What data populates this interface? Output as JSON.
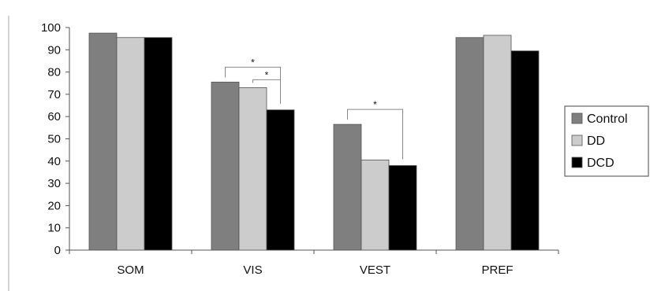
{
  "chart_data": {
    "type": "bar",
    "categories": [
      "SOM",
      "VIS",
      "VEST",
      "PREF"
    ],
    "series": [
      {
        "name": "Control",
        "color": "#7f7f7f",
        "values": [
          97.5,
          75.5,
          56.5,
          95.5
        ]
      },
      {
        "name": "DD",
        "color": "#cccccc",
        "values": [
          95.5,
          73,
          40.5,
          96.5
        ]
      },
      {
        "name": "DCD",
        "color": "#000000",
        "values": [
          95.5,
          63,
          38,
          89.5
        ]
      }
    ],
    "ylim": [
      0,
      100
    ],
    "yticks": [
      0,
      10,
      20,
      30,
      40,
      50,
      60,
      70,
      80,
      90,
      100
    ],
    "xlabel": "",
    "ylabel": "",
    "title": "",
    "legend": {
      "position": "right"
    },
    "significance": [
      {
        "category": "VIS",
        "from": "Control",
        "to": "DCD",
        "label": "*"
      },
      {
        "category": "VIS",
        "from": "DD",
        "to": "DCD",
        "label": "*"
      },
      {
        "category": "VEST",
        "from": "Control",
        "to": "DCD",
        "label": "*"
      }
    ]
  }
}
